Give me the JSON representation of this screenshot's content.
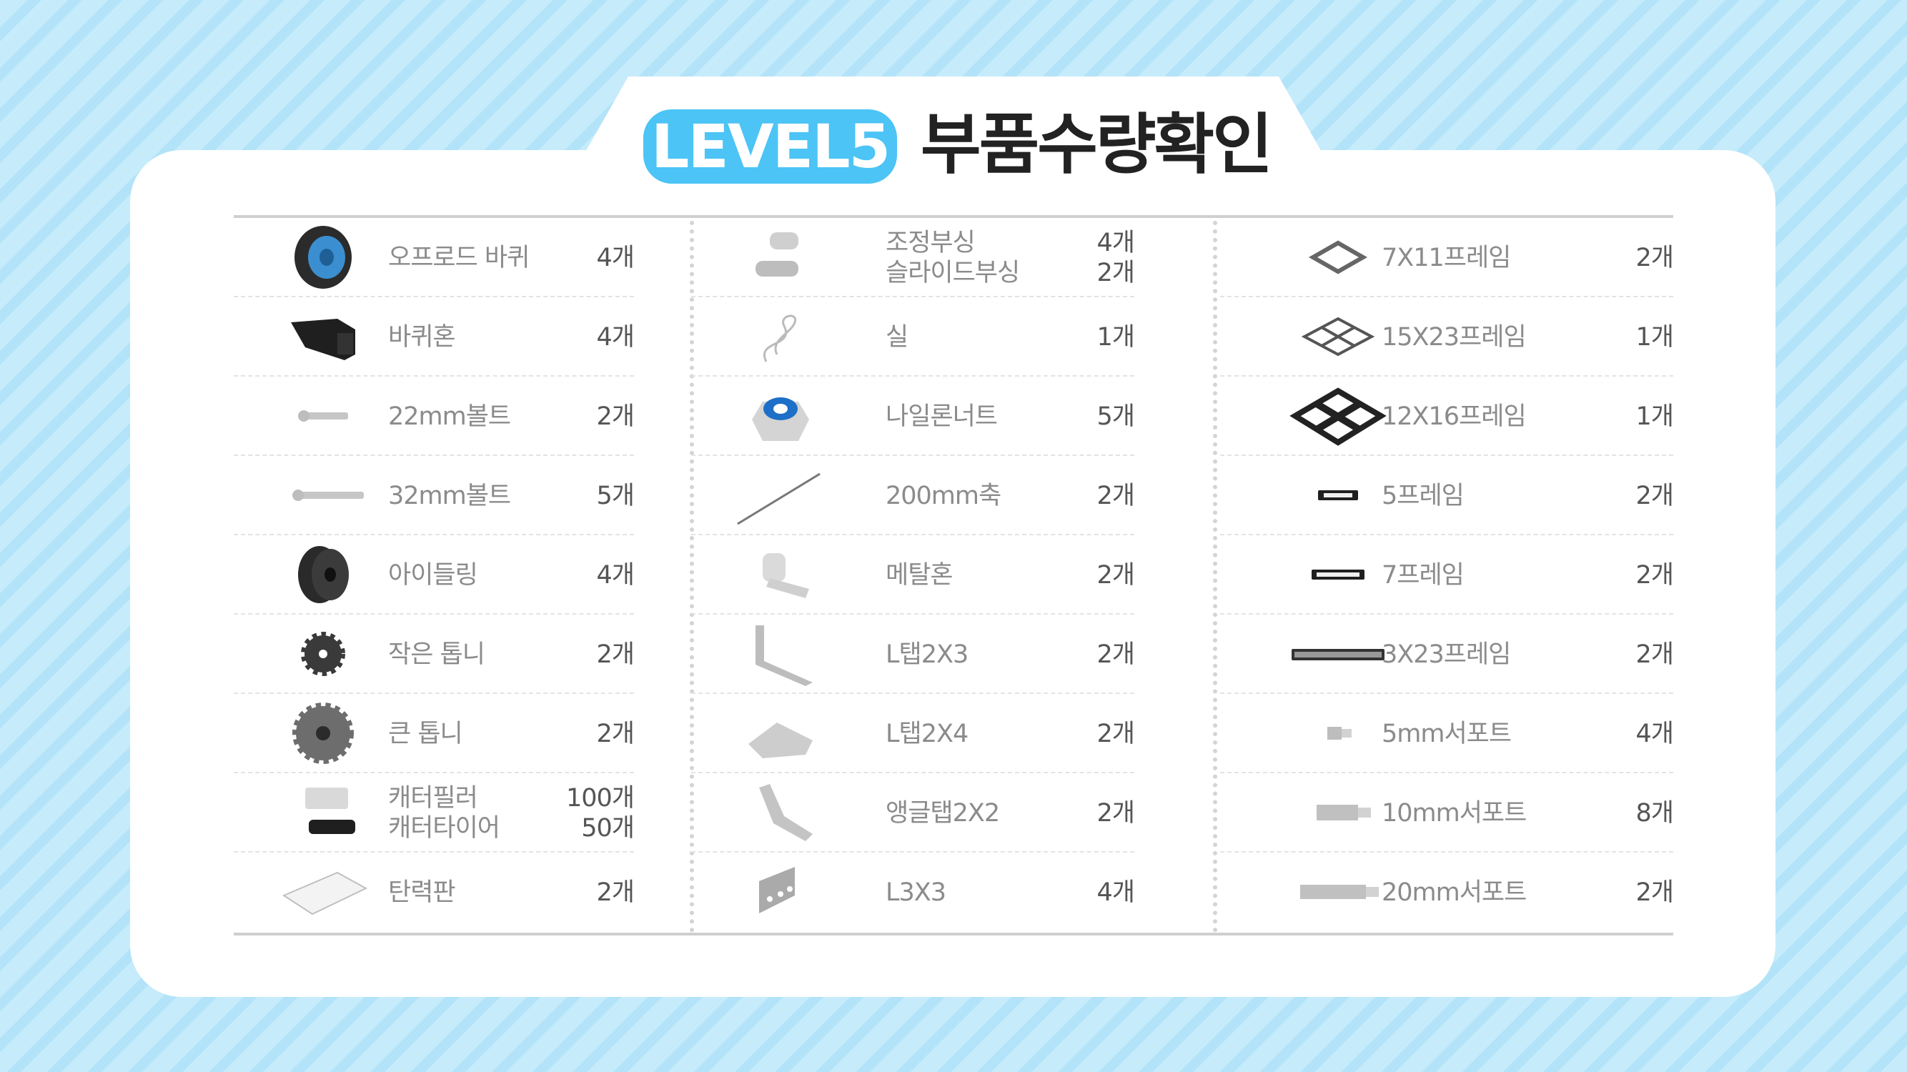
{
  "header": {
    "badge": "LEVEL5",
    "title": "부품수량확인"
  },
  "columns": [
    {
      "items": [
        {
          "icon": "wheel-icon",
          "names": [
            "오프로드 바퀴"
          ],
          "qtys": [
            "4개"
          ]
        },
        {
          "icon": "wheel-horn-icon",
          "names": [
            "바퀴혼"
          ],
          "qtys": [
            "4개"
          ]
        },
        {
          "icon": "short-bolt-icon",
          "names": [
            "22mm볼트"
          ],
          "qtys": [
            "2개"
          ]
        },
        {
          "icon": "long-bolt-icon",
          "names": [
            "32mm볼트"
          ],
          "qtys": [
            "5개"
          ]
        },
        {
          "icon": "idler-icon",
          "names": [
            "아이들링"
          ],
          "qtys": [
            "4개"
          ]
        },
        {
          "icon": "small-gear-icon",
          "names": [
            "작은 톱니"
          ],
          "qtys": [
            "2개"
          ]
        },
        {
          "icon": "large-gear-icon",
          "names": [
            "큰 톱니"
          ],
          "qtys": [
            "2개"
          ]
        },
        {
          "icon": "caterpillar-icon",
          "names": [
            "캐터필러",
            "캐터타이어"
          ],
          "qtys": [
            "100개",
            "50개"
          ]
        },
        {
          "icon": "elastic-plate-icon",
          "names": [
            "탄력판"
          ],
          "qtys": [
            "2개"
          ]
        }
      ]
    },
    {
      "items": [
        {
          "icon": "bushing-icon",
          "names": [
            "조정부싱",
            "슬라이드부싱"
          ],
          "qtys": [
            "4개",
            "2개"
          ]
        },
        {
          "icon": "thread-icon",
          "names": [
            "실"
          ],
          "qtys": [
            "1개"
          ]
        },
        {
          "icon": "nylon-nut-icon",
          "names": [
            "나일론너트"
          ],
          "qtys": [
            "5개"
          ]
        },
        {
          "icon": "shaft-icon",
          "names": [
            "200mm축"
          ],
          "qtys": [
            "2개"
          ]
        },
        {
          "icon": "metal-horn-icon",
          "names": [
            "메탈혼"
          ],
          "qtys": [
            "2개"
          ]
        },
        {
          "icon": "l-tab-2x3-icon",
          "names": [
            "L탭2X3"
          ],
          "qtys": [
            "2개"
          ]
        },
        {
          "icon": "l-tab-2x4-icon",
          "names": [
            "L탭2X4"
          ],
          "qtys": [
            "2개"
          ]
        },
        {
          "icon": "angle-tab-icon",
          "names": [
            "앵글탭2X2"
          ],
          "qtys": [
            "2개"
          ]
        },
        {
          "icon": "l3x3-icon",
          "names": [
            "L3X3"
          ],
          "qtys": [
            "4개"
          ]
        }
      ]
    },
    {
      "items": [
        {
          "icon": "frame-7x11-icon",
          "names": [
            "7X11프레임"
          ],
          "qtys": [
            "2개"
          ]
        },
        {
          "icon": "frame-15x23-icon",
          "names": [
            "15X23프레임"
          ],
          "qtys": [
            "1개"
          ]
        },
        {
          "icon": "frame-12x16-icon",
          "names": [
            "12X16프레임"
          ],
          "qtys": [
            "1개"
          ]
        },
        {
          "icon": "frame-5-icon",
          "names": [
            "5프레임"
          ],
          "qtys": [
            "2개"
          ]
        },
        {
          "icon": "frame-7-icon",
          "names": [
            "7프레임"
          ],
          "qtys": [
            "2개"
          ]
        },
        {
          "icon": "frame-3x23-icon",
          "names": [
            "3X23프레임"
          ],
          "qtys": [
            "2개"
          ]
        },
        {
          "icon": "support-5mm-icon",
          "names": [
            "5mm서포트"
          ],
          "qtys": [
            "4개"
          ]
        },
        {
          "icon": "support-10mm-icon",
          "names": [
            "10mm서포트"
          ],
          "qtys": [
            "8개"
          ]
        },
        {
          "icon": "support-20mm-icon",
          "names": [
            "20mm서포트"
          ],
          "qtys": [
            "2개"
          ]
        }
      ]
    }
  ]
}
